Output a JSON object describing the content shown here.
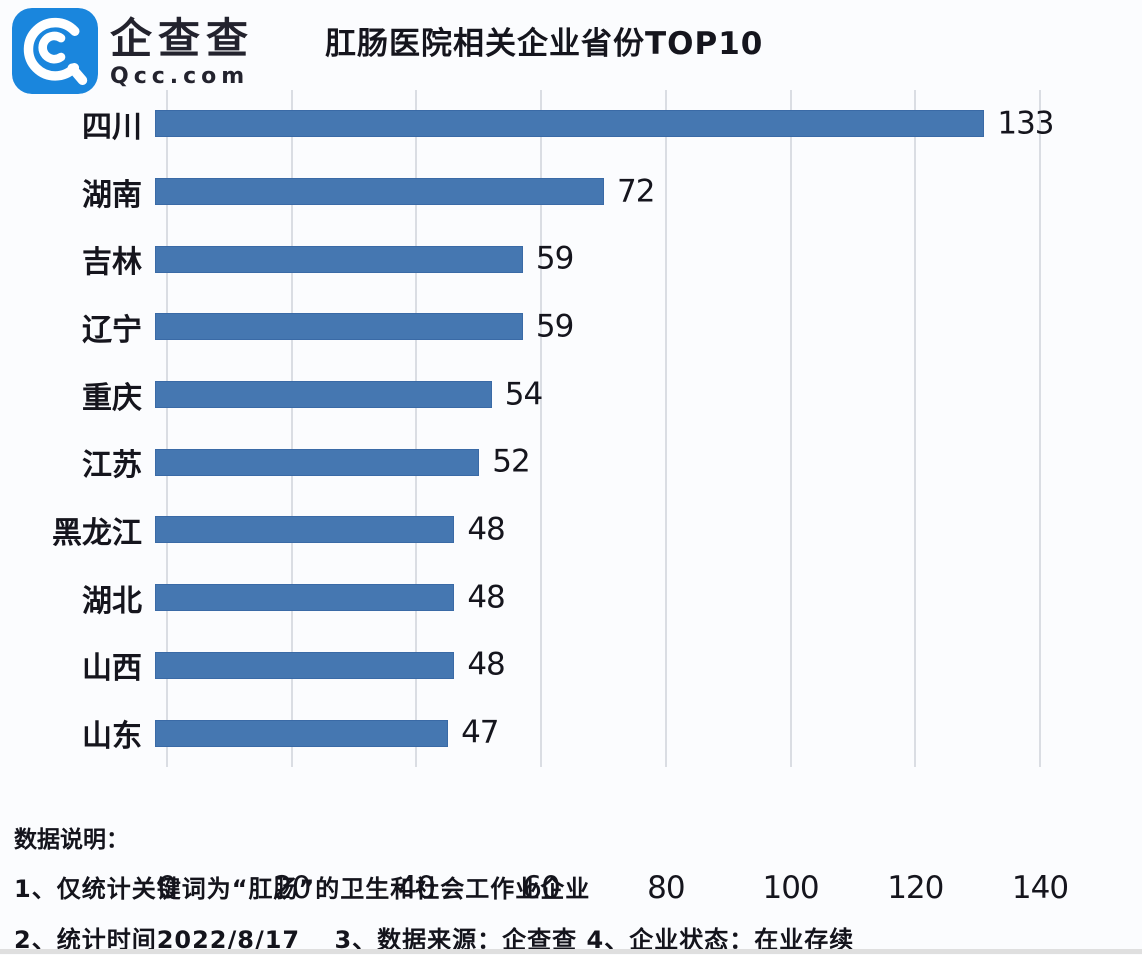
{
  "brand": {
    "name": "企查查",
    "subtext": "Qcc.com",
    "logo_color": "#1a86dd"
  },
  "title": "肛肠医院相关企业省份TOP10",
  "chart_data": {
    "type": "bar",
    "orientation": "horizontal",
    "title": "肛肠医院相关企业省份TOP10",
    "categories": [
      "四川",
      "湖南",
      "吉林",
      "辽宁",
      "重庆",
      "江苏",
      "黑龙江",
      "湖北",
      "山西",
      "山东"
    ],
    "values": [
      133,
      72,
      59,
      59,
      54,
      52,
      48,
      48,
      48,
      47
    ],
    "xlabel": "",
    "ylabel": "",
    "xlim": [
      0,
      140
    ],
    "x_ticks": [
      0,
      20,
      40,
      60,
      80,
      100,
      120,
      140
    ],
    "grid": true,
    "legend": false,
    "bar_color": "#4577b1",
    "bar_border_color": "#3a6aa6",
    "gridline_color": "#dadde3"
  },
  "footer": {
    "heading": "数据说明：",
    "line1": "1、仅统计关键词为“肛肠”的卫生和社会工作业企业",
    "line2": "2、统计时间2022/8/17　 3、数据来源：企查查 4、企业状态：在业存续"
  }
}
